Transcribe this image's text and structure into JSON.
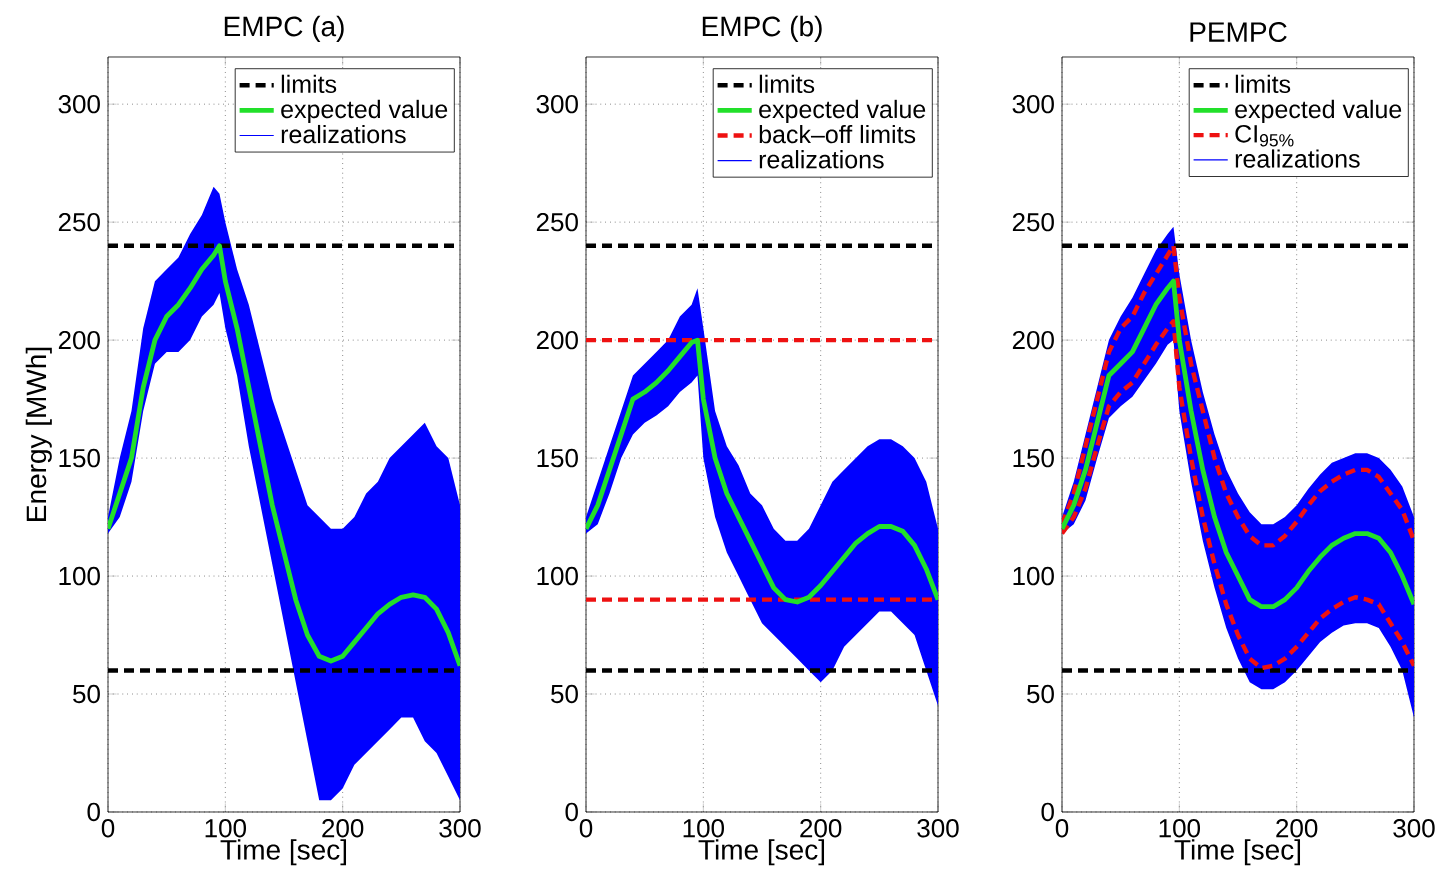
{
  "chart_data": [
    {
      "type": "line",
      "title": "EMPC (a)",
      "xlabel": "Time [sec]",
      "ylabel": "Energy [MWh]",
      "x": [
        0,
        10,
        20,
        30,
        40,
        50,
        60,
        70,
        80,
        90,
        95,
        100,
        110,
        120,
        130,
        140,
        150,
        160,
        170,
        180,
        190,
        200,
        210,
        220,
        230,
        240,
        250,
        260,
        270,
        280,
        290,
        300
      ],
      "xlim": [
        0,
        300
      ],
      "ylim": [
        0,
        320
      ],
      "xticks": [
        0,
        100,
        200,
        300
      ],
      "yticks": [
        0,
        50,
        100,
        150,
        200,
        250,
        300
      ],
      "grid": true,
      "legend": "top right",
      "series": [
        {
          "name": "expected value",
          "type": "line",
          "color": "#22e02a",
          "line_style": "solid",
          "values": [
            120,
            135,
            150,
            180,
            200,
            210,
            215,
            222,
            230,
            236,
            240,
            225,
            205,
            180,
            155,
            130,
            110,
            90,
            75,
            66,
            64,
            66,
            72,
            78,
            84,
            88,
            91,
            92,
            91,
            86,
            76,
            62
          ]
        },
        {
          "name": "realizations",
          "type": "area",
          "color": "#0000ff",
          "values": [
            null,
            null,
            null,
            null,
            null,
            null,
            null,
            null,
            null,
            null,
            null,
            null,
            null,
            null,
            null,
            null,
            null,
            null,
            null,
            null,
            null,
            null,
            null,
            null,
            null,
            null,
            null,
            null,
            null,
            null,
            null,
            null
          ],
          "lower": [
            118,
            125,
            140,
            170,
            190,
            195,
            195,
            200,
            210,
            215,
            220,
            205,
            185,
            155,
            130,
            105,
            80,
            55,
            30,
            5,
            5,
            10,
            20,
            25,
            30,
            35,
            40,
            40,
            30,
            25,
            15,
            5
          ],
          "upper": [
            125,
            150,
            170,
            205,
            225,
            230,
            235,
            245,
            253,
            265,
            262,
            250,
            230,
            215,
            195,
            175,
            160,
            145,
            130,
            125,
            120,
            120,
            125,
            135,
            140,
            150,
            155,
            160,
            165,
            155,
            150,
            130
          ]
        }
      ],
      "ref_lines": [
        {
          "axis": "y",
          "value": 240,
          "label": "limits",
          "color": "#000000",
          "line_style": "dashed"
        },
        {
          "axis": "y",
          "value": 60,
          "label": null,
          "color": "#000000",
          "line_style": "dashed"
        }
      ]
    },
    {
      "type": "line",
      "title": "EMPC (b)",
      "xlabel": "Time [sec]",
      "x": [
        0,
        10,
        20,
        30,
        40,
        50,
        60,
        70,
        80,
        90,
        95,
        100,
        110,
        120,
        130,
        140,
        150,
        160,
        170,
        180,
        190,
        200,
        210,
        220,
        230,
        240,
        250,
        260,
        270,
        280,
        290,
        300
      ],
      "xlim": [
        0,
        300
      ],
      "ylim": [
        0,
        320
      ],
      "xticks": [
        0,
        100,
        200,
        300
      ],
      "yticks": [
        0,
        50,
        100,
        150,
        200,
        250,
        300
      ],
      "grid": true,
      "legend": "top right",
      "series": [
        {
          "name": "expected value",
          "type": "line",
          "color": "#22e02a",
          "line_style": "solid",
          "values": [
            120,
            130,
            145,
            160,
            175,
            178,
            182,
            187,
            193,
            199,
            200,
            175,
            150,
            135,
            125,
            115,
            105,
            95,
            90,
            89,
            91,
            96,
            102,
            108,
            114,
            118,
            121,
            121,
            119,
            113,
            103,
            90
          ]
        },
        {
          "name": "realizations",
          "type": "area",
          "color": "#0000ff",
          "values": [
            null,
            null,
            null,
            null,
            null,
            null,
            null,
            null,
            null,
            null,
            null,
            null,
            null,
            null,
            null,
            null,
            null,
            null,
            null,
            null,
            null,
            null,
            null,
            null,
            null,
            null,
            null,
            null,
            null,
            null,
            null,
            null
          ],
          "lower": [
            118,
            122,
            135,
            150,
            160,
            165,
            168,
            172,
            178,
            182,
            185,
            150,
            125,
            110,
            100,
            90,
            80,
            75,
            70,
            65,
            60,
            55,
            60,
            70,
            75,
            80,
            85,
            85,
            80,
            75,
            60,
            45
          ],
          "upper": [
            125,
            140,
            155,
            170,
            185,
            190,
            195,
            200,
            210,
            215,
            222,
            205,
            170,
            155,
            147,
            135,
            130,
            120,
            115,
            115,
            120,
            130,
            140,
            145,
            150,
            155,
            158,
            158,
            155,
            150,
            140,
            120
          ]
        }
      ],
      "ref_lines": [
        {
          "axis": "y",
          "value": 240,
          "label": "limits",
          "color": "#000000",
          "line_style": "dashed"
        },
        {
          "axis": "y",
          "value": 60,
          "label": null,
          "color": "#000000",
          "line_style": "dashed"
        },
        {
          "axis": "y",
          "value": 200,
          "label": "back–off limits",
          "color": "#ee1111",
          "line_style": "dashed"
        },
        {
          "axis": "y",
          "value": 90,
          "label": null,
          "color": "#ee1111",
          "line_style": "dashed"
        }
      ]
    },
    {
      "type": "line",
      "title": "PEMPC",
      "xlabel": "Time [sec]",
      "x": [
        0,
        10,
        20,
        30,
        40,
        50,
        60,
        70,
        80,
        90,
        95,
        100,
        110,
        120,
        130,
        140,
        150,
        160,
        170,
        180,
        190,
        200,
        210,
        220,
        230,
        240,
        250,
        260,
        270,
        280,
        290,
        300
      ],
      "xlim": [
        0,
        300
      ],
      "ylim": [
        0,
        320
      ],
      "xticks": [
        0,
        100,
        200,
        300
      ],
      "yticks": [
        0,
        50,
        100,
        150,
        200,
        250,
        300
      ],
      "grid": true,
      "legend": "top right",
      "series": [
        {
          "name": "expected value",
          "type": "line",
          "color": "#22e02a",
          "line_style": "solid",
          "values": [
            120,
            130,
            145,
            165,
            185,
            190,
            195,
            205,
            215,
            222,
            225,
            200,
            170,
            145,
            125,
            110,
            100,
            90,
            87,
            87,
            90,
            95,
            102,
            108,
            113,
            116,
            118,
            118,
            116,
            110,
            100,
            88
          ]
        },
        {
          "name": "CI$_{95%}$",
          "type": "line",
          "color": "#ee1111",
          "line_style": "dashed",
          "values": [
            122,
            135,
            155,
            175,
            195,
            205,
            210,
            220,
            228,
            236,
            240,
            218,
            190,
            170,
            150,
            135,
            125,
            117,
            113,
            113,
            117,
            123,
            130,
            136,
            140,
            143,
            145,
            145,
            142,
            135,
            128,
            115
          ]
        },
        {
          "type": "line",
          "color": "#ee1111",
          "line_style": "dashed",
          "values": [
            118,
            125,
            137,
            155,
            172,
            178,
            182,
            190,
            198,
            205,
            208,
            180,
            150,
            125,
            105,
            88,
            75,
            65,
            61,
            62,
            65,
            70,
            76,
            82,
            86,
            89,
            91,
            90,
            88,
            80,
            72,
            62
          ]
        },
        {
          "name": "realizations",
          "type": "area",
          "color": "#0000ff",
          "values": [
            null,
            null,
            null,
            null,
            null,
            null,
            null,
            null,
            null,
            null,
            null,
            null,
            null,
            null,
            null,
            null,
            null,
            null,
            null,
            null,
            null,
            null,
            null,
            null,
            null,
            null,
            null,
            null,
            null,
            null,
            null,
            null
          ],
          "lower": [
            118,
            122,
            132,
            150,
            167,
            172,
            176,
            183,
            190,
            198,
            200,
            170,
            140,
            115,
            95,
            78,
            65,
            55,
            52,
            52,
            55,
            60,
            66,
            72,
            76,
            79,
            80,
            80,
            78,
            70,
            60,
            40
          ],
          "upper": [
            125,
            140,
            160,
            180,
            200,
            210,
            218,
            228,
            238,
            245,
            248,
            228,
            200,
            178,
            160,
            145,
            135,
            127,
            122,
            122,
            125,
            130,
            137,
            143,
            148,
            150,
            152,
            152,
            150,
            145,
            138,
            125
          ]
        }
      ],
      "ref_lines": [
        {
          "axis": "y",
          "value": 240,
          "label": "limits",
          "color": "#000000",
          "line_style": "dashed"
        },
        {
          "axis": "y",
          "value": 60,
          "label": null,
          "color": "#000000",
          "line_style": "dashed"
        }
      ]
    }
  ]
}
